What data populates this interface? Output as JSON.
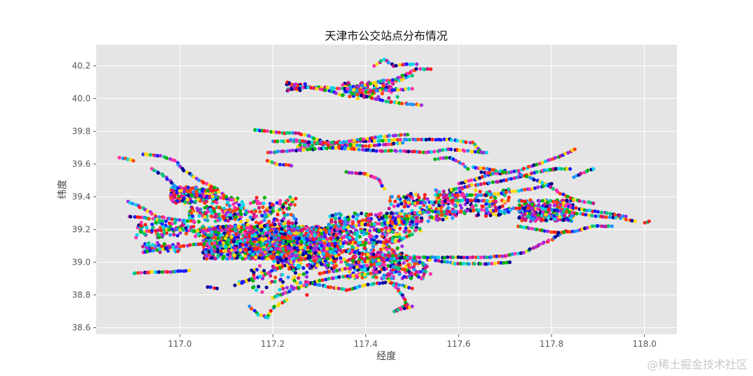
{
  "chart_data": {
    "type": "scatter",
    "title": "天津市公交站点分布情况",
    "xlabel": "经度",
    "ylabel": "纬度",
    "xlim": [
      116.82,
      118.07
    ],
    "ylim": [
      38.56,
      40.33
    ],
    "xticks": [
      117.0,
      117.2,
      117.4,
      117.6,
      117.8,
      118.0
    ],
    "xtick_labels": [
      "117.0",
      "117.2",
      "117.4",
      "117.6",
      "117.8",
      "118.0"
    ],
    "yticks": [
      38.6,
      38.8,
      39.0,
      39.2,
      39.4,
      39.6,
      39.8,
      40.0,
      40.2
    ],
    "ytick_labels": [
      "38.6",
      "38.8",
      "39.0",
      "39.2",
      "39.4",
      "39.6",
      "39.8",
      "40.0",
      "40.2"
    ],
    "grid": true,
    "colors": [
      "#ff1a1a",
      "#1a1aff",
      "#00b000",
      "#00d5e8",
      "#ff2fa8",
      "#9a2be0",
      "#ffd800",
      "#000090",
      "#1e90ff",
      "#00c47a",
      "#ff4500",
      "#c71585"
    ],
    "routes": [
      [
        [
          116.87,
          39.64
        ],
        [
          116.9,
          39.62
        ]
      ],
      [
        [
          116.92,
          39.66
        ],
        [
          116.96,
          39.65
        ],
        [
          116.99,
          39.62
        ],
        [
          117.01,
          39.56
        ],
        [
          117.04,
          39.5
        ],
        [
          117.08,
          39.45
        ]
      ],
      [
        [
          116.94,
          39.57
        ],
        [
          116.97,
          39.52
        ],
        [
          116.99,
          39.46
        ],
        [
          117.02,
          39.41
        ],
        [
          117.07,
          39.4
        ],
        [
          117.12,
          39.38
        ]
      ],
      [
        [
          116.98,
          39.44
        ],
        [
          117.03,
          39.43
        ],
        [
          117.08,
          39.44
        ],
        [
          117.1,
          39.4
        ]
      ],
      [
        [
          116.89,
          39.37
        ],
        [
          116.92,
          39.33
        ],
        [
          116.95,
          39.28
        ],
        [
          116.99,
          39.26
        ],
        [
          117.03,
          39.25
        ]
      ],
      [
        [
          116.89,
          39.28
        ],
        [
          116.93,
          39.27
        ],
        [
          116.97,
          39.25
        ]
      ],
      [
        [
          116.93,
          39.19
        ],
        [
          116.99,
          39.2
        ],
        [
          117.05,
          39.19
        ],
        [
          117.1,
          39.22
        ],
        [
          117.15,
          39.21
        ],
        [
          117.2,
          39.23
        ],
        [
          117.25,
          39.24
        ]
      ],
      [
        [
          116.92,
          39.06
        ],
        [
          116.98,
          39.09
        ],
        [
          117.04,
          39.11
        ],
        [
          117.1,
          39.12
        ],
        [
          117.16,
          39.14
        ],
        [
          117.22,
          39.15
        ],
        [
          117.3,
          39.14
        ]
      ],
      [
        [
          116.9,
          38.93
        ],
        [
          116.94,
          38.94
        ],
        [
          116.98,
          38.94
        ],
        [
          117.02,
          38.95
        ]
      ],
      [
        [
          117.05,
          39.06
        ],
        [
          117.1,
          39.07
        ],
        [
          117.15,
          39.08
        ],
        [
          117.21,
          39.08
        ],
        [
          117.27,
          39.09
        ],
        [
          117.33,
          39.08
        ],
        [
          117.4,
          39.05
        ],
        [
          117.46,
          39.04
        ],
        [
          117.5,
          39.02
        ]
      ],
      [
        [
          117.06,
          38.85
        ],
        [
          117.08,
          38.84
        ]
      ],
      [
        [
          117.13,
          38.88
        ],
        [
          117.16,
          38.9
        ]
      ],
      [
        [
          117.12,
          38.86
        ],
        [
          117.15,
          38.89
        ],
        [
          117.18,
          38.92
        ],
        [
          117.21,
          38.96
        ],
        [
          117.24,
          39.0
        ],
        [
          117.28,
          39.03
        ]
      ],
      [
        [
          117.15,
          38.73
        ],
        [
          117.17,
          38.68
        ],
        [
          117.19,
          38.66
        ],
        [
          117.2,
          38.72
        ],
        [
          117.23,
          38.77
        ]
      ],
      [
        [
          117.2,
          38.78
        ],
        [
          117.24,
          38.83
        ],
        [
          117.28,
          38.87
        ],
        [
          117.32,
          38.9
        ],
        [
          117.38,
          38.92
        ],
        [
          117.43,
          38.94
        ]
      ],
      [
        [
          117.27,
          38.88
        ],
        [
          117.32,
          38.85
        ],
        [
          117.36,
          38.83
        ],
        [
          117.4,
          38.86
        ],
        [
          117.45,
          38.88
        ],
        [
          117.5,
          38.84
        ]
      ],
      [
        [
          117.3,
          38.93
        ],
        [
          117.34,
          38.95
        ],
        [
          117.38,
          38.97
        ],
        [
          117.43,
          38.99
        ],
        [
          117.49,
          38.95
        ],
        [
          117.52,
          38.9
        ]
      ],
      [
        [
          117.44,
          38.92
        ],
        [
          117.46,
          38.86
        ],
        [
          117.48,
          38.8
        ],
        [
          117.49,
          38.74
        ],
        [
          117.46,
          38.7
        ],
        [
          117.5,
          38.73
        ]
      ],
      [
        [
          117.3,
          39.1
        ],
        [
          117.36,
          39.12
        ],
        [
          117.42,
          39.12
        ],
        [
          117.47,
          39.13
        ],
        [
          117.5,
          39.17
        ]
      ],
      [
        [
          117.3,
          39.17
        ],
        [
          117.35,
          39.21
        ],
        [
          117.4,
          39.23
        ],
        [
          117.46,
          39.24
        ],
        [
          117.52,
          39.25
        ]
      ],
      [
        [
          117.38,
          39.0
        ],
        [
          117.43,
          39.01
        ],
        [
          117.48,
          39.03
        ],
        [
          117.54,
          39.03
        ],
        [
          117.6,
          39.03
        ],
        [
          117.66,
          39.03
        ],
        [
          117.7,
          39.04
        ],
        [
          117.74,
          39.06
        ],
        [
          117.77,
          39.1
        ],
        [
          117.8,
          39.14
        ],
        [
          117.83,
          39.19
        ]
      ],
      [
        [
          117.55,
          39.01
        ],
        [
          117.6,
          38.99
        ],
        [
          117.66,
          38.99
        ],
        [
          117.71,
          39.0
        ]
      ],
      [
        [
          117.5,
          39.3
        ],
        [
          117.55,
          39.31
        ],
        [
          117.6,
          39.31
        ],
        [
          117.65,
          39.32
        ],
        [
          117.7,
          39.31
        ]
      ],
      [
        [
          117.5,
          39.36
        ],
        [
          117.56,
          39.37
        ],
        [
          117.62,
          39.38
        ],
        [
          117.68,
          39.37
        ]
      ],
      [
        [
          117.55,
          39.41
        ],
        [
          117.6,
          39.41
        ],
        [
          117.66,
          39.41
        ],
        [
          117.71,
          39.43
        ],
        [
          117.76,
          39.45
        ],
        [
          117.8,
          39.48
        ]
      ],
      [
        [
          117.58,
          39.44
        ],
        [
          117.63,
          39.47
        ],
        [
          117.68,
          39.49
        ],
        [
          117.73,
          39.52
        ],
        [
          117.77,
          39.55
        ],
        [
          117.81,
          39.57
        ]
      ],
      [
        [
          117.6,
          39.48
        ],
        [
          117.64,
          39.51
        ],
        [
          117.67,
          39.54
        ],
        [
          117.7,
          39.56
        ]
      ],
      [
        [
          117.65,
          39.55
        ],
        [
          117.69,
          39.54
        ],
        [
          117.73,
          39.56
        ],
        [
          117.78,
          39.61
        ],
        [
          117.82,
          39.65
        ],
        [
          117.85,
          39.69
        ]
      ],
      [
        [
          117.73,
          39.54
        ],
        [
          117.77,
          39.5
        ],
        [
          117.8,
          39.46
        ],
        [
          117.82,
          39.42
        ],
        [
          117.85,
          39.38
        ],
        [
          117.89,
          39.36
        ]
      ],
      [
        [
          117.72,
          39.33
        ],
        [
          117.76,
          39.33
        ],
        [
          117.8,
          39.32
        ],
        [
          117.85,
          39.3
        ],
        [
          117.9,
          39.28
        ],
        [
          117.95,
          39.27
        ],
        [
          117.98,
          39.25
        ]
      ],
      [
        [
          117.82,
          39.35
        ],
        [
          117.87,
          39.32
        ],
        [
          117.92,
          39.3
        ],
        [
          117.96,
          39.28
        ]
      ],
      [
        [
          117.85,
          39.52
        ],
        [
          117.87,
          39.55
        ],
        [
          117.89,
          39.57
        ]
      ],
      [
        [
          117.73,
          39.22
        ],
        [
          117.77,
          39.2
        ],
        [
          117.81,
          39.18
        ],
        [
          117.85,
          39.19
        ],
        [
          117.89,
          39.22
        ],
        [
          117.93,
          39.22
        ]
      ],
      [
        [
          118.0,
          39.24
        ],
        [
          118.01,
          39.25
        ]
      ],
      [
        [
          117.78,
          39.56
        ],
        [
          117.81,
          39.57
        ],
        [
          117.84,
          39.57
        ]
      ],
      [
        [
          117.16,
          39.81
        ],
        [
          117.19,
          39.8
        ],
        [
          117.22,
          39.79
        ],
        [
          117.25,
          39.79
        ],
        [
          117.28,
          39.77
        ],
        [
          117.31,
          39.73
        ],
        [
          117.35,
          39.72
        ],
        [
          117.4,
          39.71
        ],
        [
          117.45,
          39.72
        ],
        [
          117.48,
          39.73
        ]
      ],
      [
        [
          117.2,
          39.74
        ],
        [
          117.24,
          39.74
        ],
        [
          117.28,
          39.73
        ],
        [
          117.32,
          39.72
        ],
        [
          117.37,
          39.74
        ],
        [
          117.42,
          39.74
        ],
        [
          117.47,
          39.75
        ],
        [
          117.52,
          39.75
        ],
        [
          117.58,
          39.75
        ],
        [
          117.63,
          39.73
        ],
        [
          117.65,
          39.67
        ]
      ],
      [
        [
          117.19,
          39.67
        ],
        [
          117.23,
          39.68
        ],
        [
          117.28,
          39.69
        ],
        [
          117.33,
          39.7
        ],
        [
          117.38,
          39.69
        ],
        [
          117.43,
          39.68
        ],
        [
          117.48,
          39.68
        ],
        [
          117.53,
          39.67
        ],
        [
          117.58,
          39.69
        ],
        [
          117.62,
          39.68
        ],
        [
          117.66,
          39.67
        ]
      ],
      [
        [
          117.19,
          39.62
        ],
        [
          117.21,
          39.6
        ],
        [
          117.24,
          39.59
        ]
      ],
      [
        [
          117.55,
          39.63
        ],
        [
          117.58,
          39.64
        ],
        [
          117.61,
          39.6
        ],
        [
          117.62,
          39.57
        ]
      ],
      [
        [
          117.36,
          39.55
        ],
        [
          117.4,
          39.54
        ],
        [
          117.43,
          39.5
        ],
        [
          117.44,
          39.45
        ]
      ],
      [
        [
          117.63,
          39.58
        ],
        [
          117.66,
          39.57
        ],
        [
          117.7,
          39.55
        ]
      ],
      [
        [
          117.23,
          40.1
        ],
        [
          117.26,
          40.07
        ],
        [
          117.3,
          40.07
        ],
        [
          117.35,
          40.06
        ],
        [
          117.4,
          40.05
        ],
        [
          117.45,
          40.05
        ],
        [
          117.5,
          40.06
        ]
      ],
      [
        [
          117.23,
          40.05
        ],
        [
          117.27,
          40.07
        ],
        [
          117.32,
          40.05
        ],
        [
          117.35,
          40.02
        ]
      ],
      [
        [
          117.36,
          40.04
        ],
        [
          117.39,
          40.02
        ],
        [
          117.42,
          40.0
        ],
        [
          117.45,
          39.98
        ],
        [
          117.48,
          39.97
        ],
        [
          117.52,
          39.96
        ]
      ],
      [
        [
          117.38,
          40.07
        ],
        [
          117.41,
          40.09
        ],
        [
          117.44,
          40.11
        ],
        [
          117.47,
          40.11
        ],
        [
          117.5,
          40.14
        ]
      ],
      [
        [
          117.4,
          40.04
        ],
        [
          117.43,
          40.05
        ],
        [
          117.45,
          40.1
        ],
        [
          117.48,
          40.14
        ],
        [
          117.51,
          40.18
        ],
        [
          117.54,
          40.18
        ]
      ],
      [
        [
          117.42,
          40.2
        ],
        [
          117.44,
          40.24
        ],
        [
          117.46,
          40.2
        ],
        [
          117.49,
          40.21
        ],
        [
          117.51,
          40.21
        ]
      ],
      [
        [
          117.24,
          39.75
        ],
        [
          117.29,
          39.73
        ],
        [
          117.34,
          39.73
        ],
        [
          117.39,
          39.75
        ],
        [
          117.44,
          39.77
        ],
        [
          117.49,
          39.78
        ]
      ]
    ],
    "clusters": [
      {
        "x": [
          116.98,
          117.08
        ],
        "y": [
          39.36,
          39.46
        ],
        "n": 180
      },
      {
        "x": [
          117.02,
          117.12
        ],
        "y": [
          39.25,
          39.34
        ],
        "n": 100
      },
      {
        "x": [
          117.05,
          117.3
        ],
        "y": [
          39.02,
          39.22
        ],
        "n": 950
      },
      {
        "x": [
          117.14,
          117.25
        ],
        "y": [
          39.06,
          39.18
        ],
        "n": 600
      },
      {
        "x": [
          117.2,
          117.34
        ],
        "y": [
          38.96,
          39.22
        ],
        "n": 380
      },
      {
        "x": [
          117.28,
          117.48
        ],
        "y": [
          39.0,
          39.2
        ],
        "n": 300
      },
      {
        "x": [
          117.32,
          117.52
        ],
        "y": [
          39.18,
          39.3
        ],
        "n": 200
      },
      {
        "x": [
          117.36,
          117.54
        ],
        "y": [
          38.9,
          39.04
        ],
        "n": 180
      },
      {
        "x": [
          117.45,
          117.6
        ],
        "y": [
          39.25,
          39.42
        ],
        "n": 150
      },
      {
        "x": [
          117.55,
          117.72
        ],
        "y": [
          39.28,
          39.45
        ],
        "n": 130
      },
      {
        "x": [
          117.73,
          117.85
        ],
        "y": [
          39.25,
          39.38
        ],
        "n": 230
      },
      {
        "x": [
          117.35,
          117.47
        ],
        "y": [
          40.0,
          40.1
        ],
        "n": 90
      },
      {
        "x": [
          117.23,
          117.27
        ],
        "y": [
          40.05,
          40.1
        ],
        "n": 20
      },
      {
        "x": [
          116.9,
          117.05
        ],
        "y": [
          39.15,
          39.25
        ],
        "n": 80
      },
      {
        "x": [
          116.92,
          117.0
        ],
        "y": [
          39.06,
          39.12
        ],
        "n": 40
      },
      {
        "x": [
          117.1,
          117.25
        ],
        "y": [
          39.22,
          39.4
        ],
        "n": 140
      },
      {
        "x": [
          117.15,
          117.28
        ],
        "y": [
          38.8,
          38.98
        ],
        "n": 60
      },
      {
        "x": [
          117.25,
          117.38
        ],
        "y": [
          39.7,
          39.74
        ],
        "n": 45
      }
    ]
  },
  "watermark": "@稀土掘金技术社区"
}
